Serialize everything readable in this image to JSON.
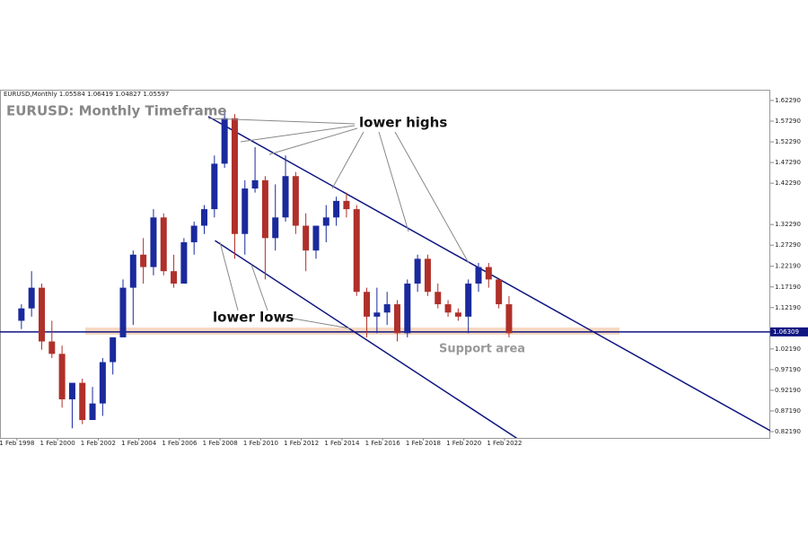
{
  "chart_data": {
    "type": "candlestick",
    "header": "EURUSD,Monthly 1.05584 1.06419 1.04827 1.05597",
    "title": "EURUSD: Monthly Timeframe",
    "annotations": [
      "lower highs",
      "lower lows",
      "Support area"
    ],
    "x": [
      "1998-02",
      "1998-08",
      "1999-02",
      "1999-08",
      "2000-02",
      "2000-08",
      "2001-02",
      "2001-08",
      "2002-02",
      "2002-08",
      "2003-02",
      "2003-08",
      "2004-02",
      "2004-08",
      "2005-02",
      "2005-08",
      "2006-02",
      "2006-08",
      "2007-02",
      "2007-08",
      "2008-02",
      "2008-08",
      "2009-02",
      "2009-08",
      "2010-02",
      "2010-08",
      "2011-02",
      "2011-08",
      "2012-02",
      "2012-08",
      "2013-02",
      "2013-08",
      "2014-02",
      "2014-08",
      "2015-02",
      "2015-08",
      "2016-02",
      "2016-08",
      "2017-02",
      "2017-08",
      "2018-02",
      "2018-08",
      "2019-02",
      "2019-08",
      "2020-02",
      "2020-08",
      "2021-02",
      "2021-08",
      "2022-02"
    ],
    "open": [
      1.09,
      1.12,
      1.17,
      1.04,
      1.01,
      0.9,
      0.94,
      0.85,
      0.89,
      0.99,
      1.05,
      1.17,
      1.25,
      1.22,
      1.34,
      1.21,
      1.18,
      1.28,
      1.32,
      1.36,
      1.47,
      1.58,
      1.3,
      1.41,
      1.43,
      1.29,
      1.34,
      1.44,
      1.32,
      1.26,
      1.32,
      1.34,
      1.38,
      1.36,
      1.16,
      1.1,
      1.11,
      1.13,
      1.06,
      1.18,
      1.24,
      1.16,
      1.13,
      1.11,
      1.1,
      1.18,
      1.22,
      1.19,
      1.13
    ],
    "high": [
      1.13,
      1.21,
      1.18,
      1.09,
      1.03,
      0.94,
      0.95,
      0.93,
      1.0,
      1.05,
      1.19,
      1.26,
      1.29,
      1.36,
      1.35,
      1.25,
      1.29,
      1.33,
      1.37,
      1.49,
      1.6,
      1.59,
      1.43,
      1.51,
      1.44,
      1.42,
      1.49,
      1.45,
      1.35,
      1.32,
      1.37,
      1.39,
      1.4,
      1.37,
      1.17,
      1.17,
      1.16,
      1.14,
      1.19,
      1.25,
      1.25,
      1.18,
      1.14,
      1.12,
      1.19,
      1.23,
      1.23,
      1.19,
      1.15
    ],
    "low": [
      1.07,
      1.1,
      1.02,
      1.0,
      0.88,
      0.83,
      0.84,
      0.85,
      0.86,
      0.96,
      1.05,
      1.08,
      1.18,
      1.2,
      1.2,
      1.17,
      1.18,
      1.25,
      1.3,
      1.34,
      1.46,
      1.24,
      1.25,
      1.4,
      1.19,
      1.26,
      1.33,
      1.3,
      1.21,
      1.24,
      1.28,
      1.32,
      1.34,
      1.15,
      1.05,
      1.06,
      1.08,
      1.04,
      1.05,
      1.16,
      1.15,
      1.12,
      1.1,
      1.09,
      1.06,
      1.16,
      1.17,
      1.12,
      1.05
    ],
    "close": [
      1.12,
      1.17,
      1.04,
      1.01,
      0.9,
      0.94,
      0.85,
      0.89,
      0.99,
      1.05,
      1.17,
      1.25,
      1.22,
      1.34,
      1.21,
      1.18,
      1.28,
      1.32,
      1.36,
      1.47,
      1.58,
      1.3,
      1.41,
      1.43,
      1.29,
      1.34,
      1.44,
      1.32,
      1.26,
      1.32,
      1.34,
      1.38,
      1.36,
      1.16,
      1.1,
      1.11,
      1.13,
      1.06,
      1.18,
      1.24,
      1.16,
      1.13,
      1.11,
      1.1,
      1.18,
      1.22,
      1.19,
      1.13,
      1.06
    ],
    "up_color": "#1a2a9c",
    "down_color": "#b0302a",
    "xlim": [
      "1997-04",
      "2035-03"
    ],
    "xticks": [
      {
        "value": "1998-02",
        "label": "1 Feb 1998"
      },
      {
        "value": "2000-02",
        "label": "1 Feb 2000"
      },
      {
        "value": "2002-02",
        "label": "1 Feb 2002"
      },
      {
        "value": "2004-02",
        "label": "1 Feb 2004"
      },
      {
        "value": "2006-02",
        "label": "1 Feb 2006"
      },
      {
        "value": "2008-02",
        "label": "1 Feb 2008"
      },
      {
        "value": "2010-02",
        "label": "1 Feb 2010"
      },
      {
        "value": "2012-02",
        "label": "1 Feb 2012"
      },
      {
        "value": "2014-02",
        "label": "1 Feb 2014"
      },
      {
        "value": "2016-02",
        "label": "1 Feb 2016"
      },
      {
        "value": "2018-02",
        "label": "1 Feb 2018"
      },
      {
        "value": "2020-02",
        "label": "1 Feb 2020"
      },
      {
        "value": "2022-02",
        "label": "1 Feb 2022"
      }
    ],
    "ylim": [
      0.8067,
      1.6489
    ],
    "yticks": [
      {
        "value": 1.6229,
        "label": "1.62290"
      },
      {
        "value": 1.5729,
        "label": "1.57290"
      },
      {
        "value": 1.5229,
        "label": "1.52290"
      },
      {
        "value": 1.4729,
        "label": "1.47290"
      },
      {
        "value": 1.4229,
        "label": "1.42290"
      },
      {
        "value": 1.3229,
        "label": "1.32290"
      },
      {
        "value": 1.2729,
        "label": "1.27290"
      },
      {
        "value": 1.2219,
        "label": "1.22190"
      },
      {
        "value": 1.1719,
        "label": "1.17190"
      },
      {
        "value": 1.1219,
        "label": "1.12190"
      },
      {
        "value": 1.0219,
        "label": "1.02190"
      },
      {
        "value": 0.9719,
        "label": "0.97190"
      },
      {
        "value": 0.9219,
        "label": "0.92190"
      },
      {
        "value": 0.8719,
        "label": "0.87190"
      },
      {
        "value": 0.8219,
        "label": "0.82190"
      }
    ],
    "trend_lines": [
      {
        "x": [
          "2007-07",
          "2035-03"
        ],
        "y": [
          1.584,
          0.824
        ],
        "color": "#0f1680"
      },
      {
        "x": [
          "2007-11",
          "2022-11"
        ],
        "y": [
          1.284,
          0.8012
        ],
        "color": "#0f1680"
      }
    ],
    "support_level": {
      "value": 1.0631,
      "label": "1.06309",
      "color": "#0f1680"
    }
  }
}
